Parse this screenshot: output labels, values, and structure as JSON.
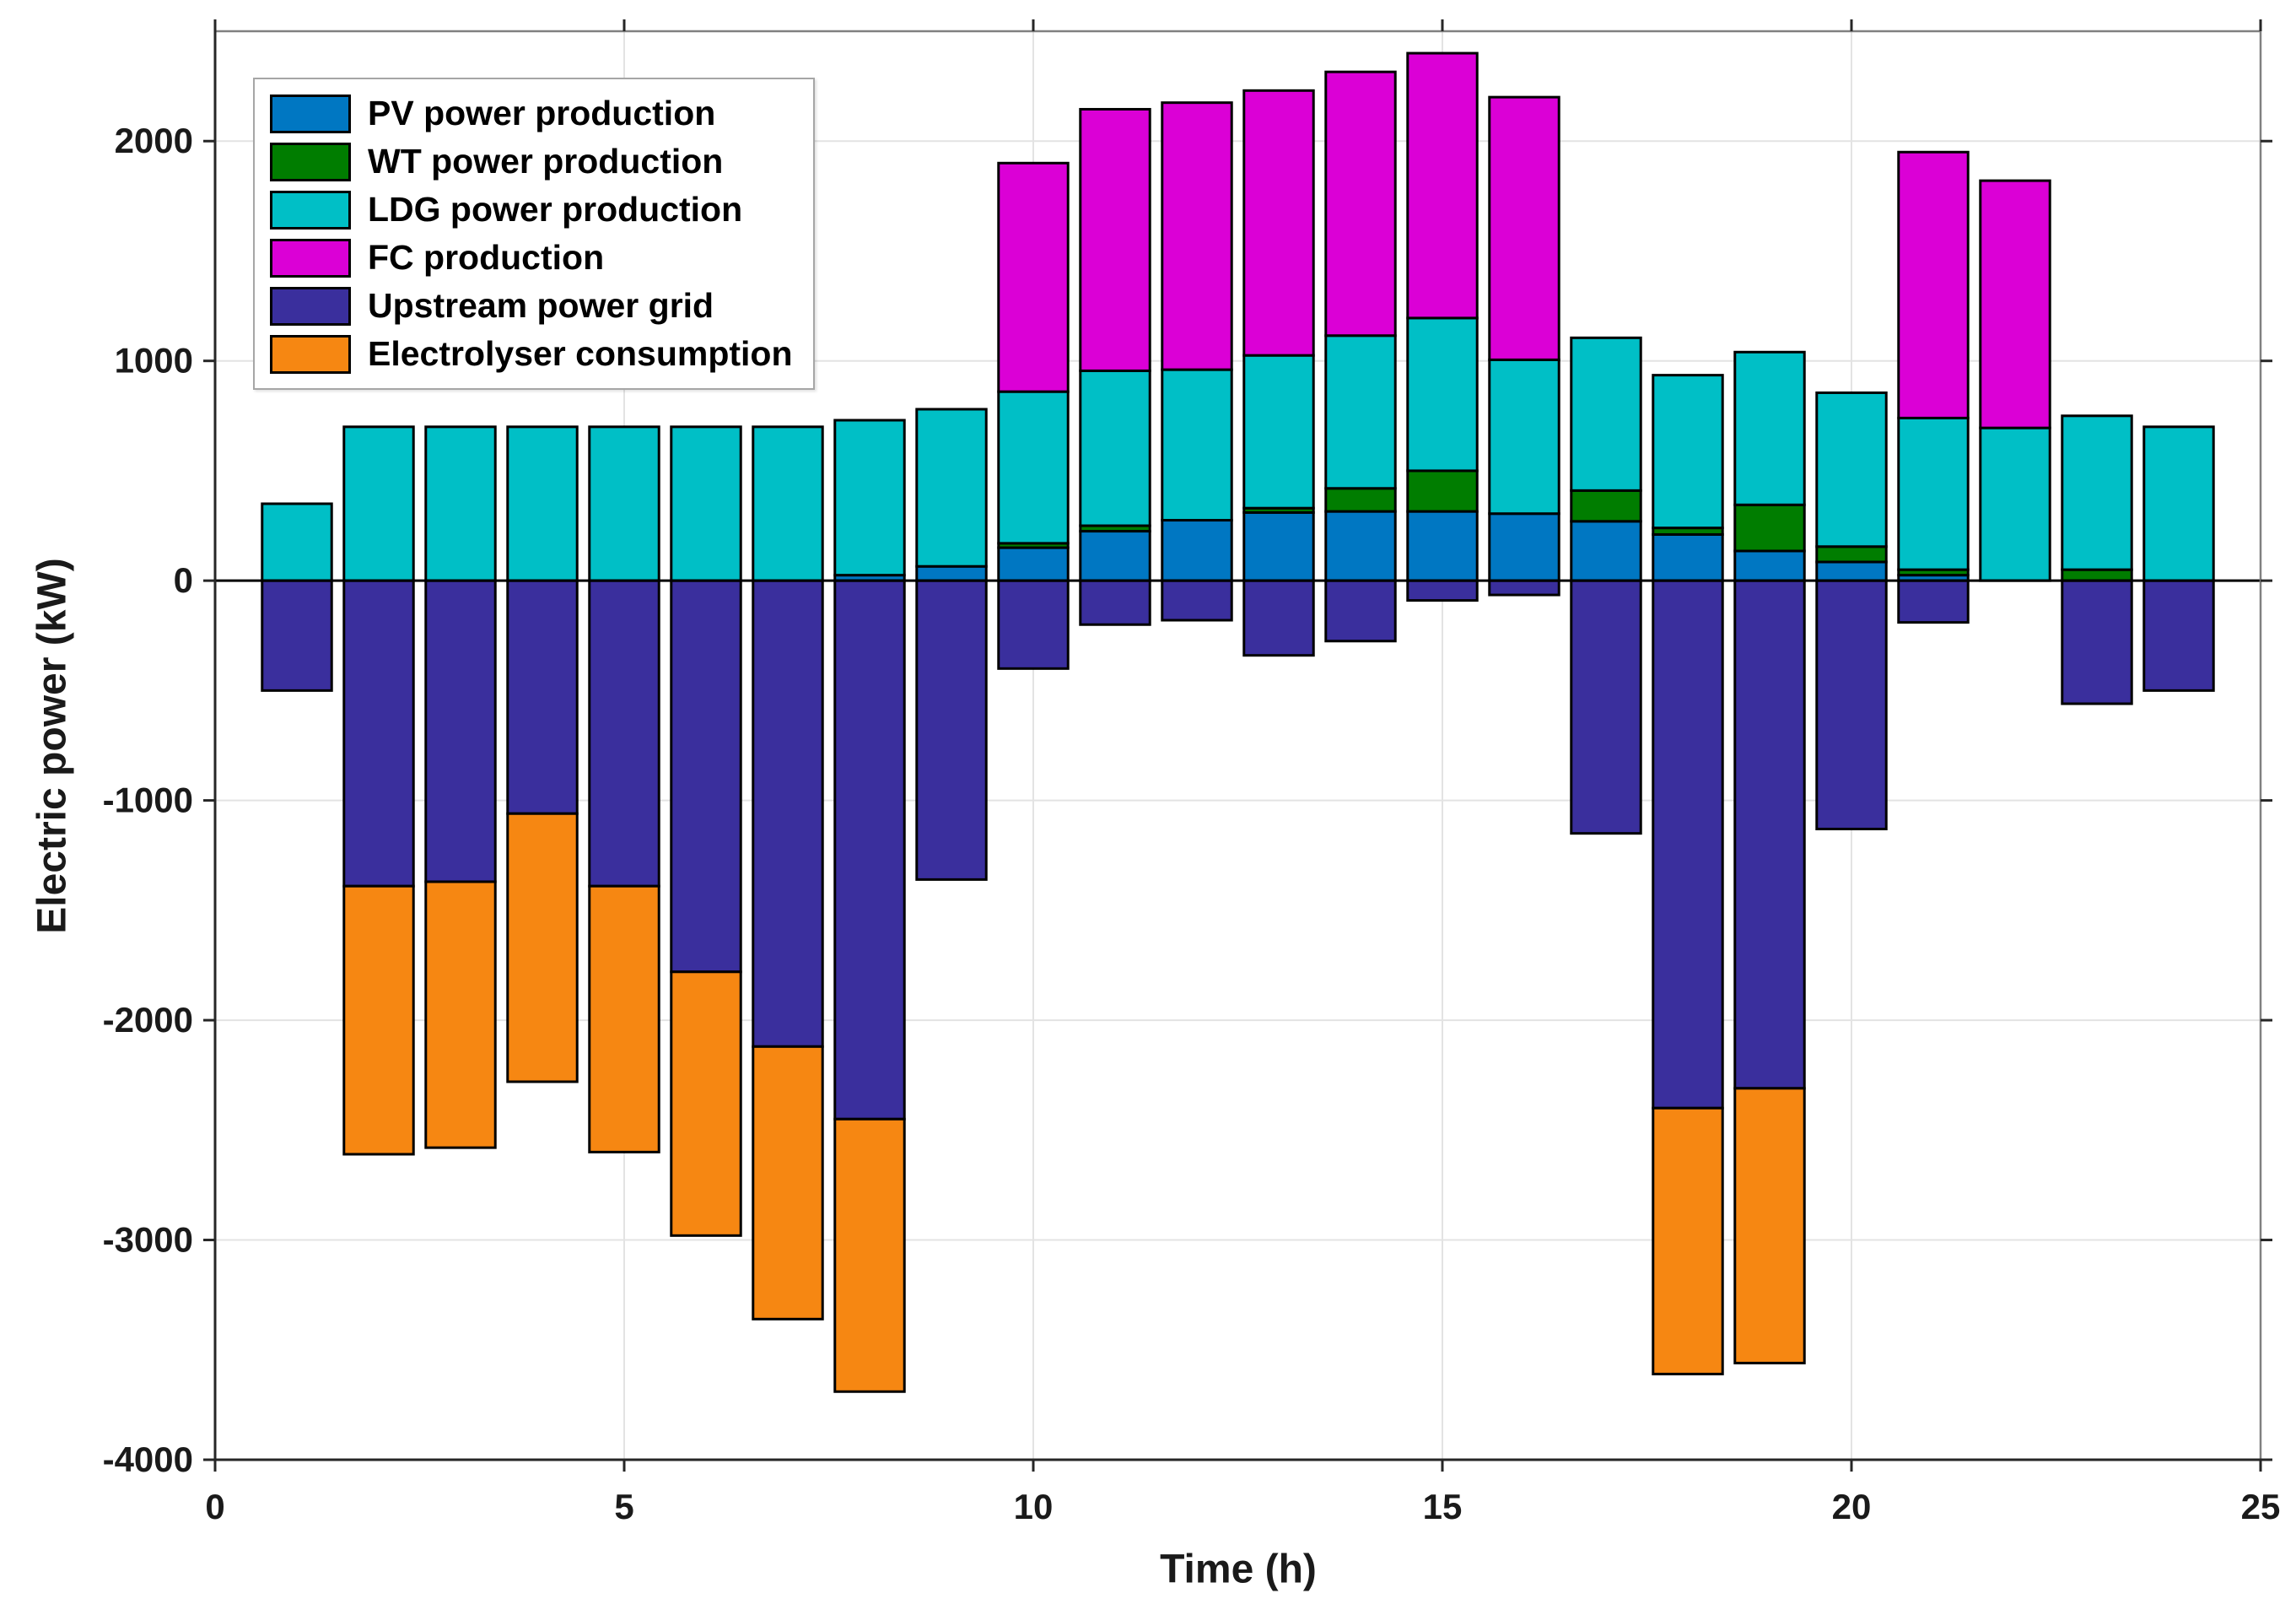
{
  "chart_data": {
    "type": "bar",
    "stacked": true,
    "title": "",
    "xlabel": "Time (h)",
    "ylabel": "Electric power (kW)",
    "xlim": [
      0,
      25
    ],
    "ylim": [
      -4000,
      2500
    ],
    "x_ticks": [
      0,
      5,
      10,
      15,
      20,
      25
    ],
    "y_ticks": [
      2000,
      1000,
      0,
      -1000,
      -2000,
      -3000,
      -4000
    ],
    "grid": true,
    "legend_position": "top-left",
    "bar_width_hours": 0.85,
    "hours": [
      1,
      2,
      3,
      4,
      5,
      6,
      7,
      8,
      9,
      10,
      11,
      12,
      13,
      14,
      15,
      16,
      17,
      18,
      19,
      20,
      21,
      22,
      23,
      24
    ],
    "series": [
      {
        "name": "PV power production",
        "color": "#0077C2",
        "stack": "positive",
        "values": [
          0,
          0,
          0,
          0,
          0,
          0,
          0,
          25,
          65,
          150,
          225,
          275,
          310,
          315,
          315,
          305,
          270,
          210,
          135,
          85,
          25,
          0,
          0,
          0
        ]
      },
      {
        "name": "WT power production",
        "color": "#007D00",
        "stack": "positive",
        "values": [
          0,
          0,
          0,
          0,
          0,
          0,
          0,
          0,
          0,
          20,
          25,
          0,
          20,
          105,
          185,
          0,
          140,
          30,
          210,
          70,
          25,
          0,
          50,
          0
        ]
      },
      {
        "name": "LDG power production",
        "color": "#00BFC6",
        "stack": "positive",
        "values": [
          350,
          700,
          700,
          700,
          700,
          700,
          700,
          705,
          715,
          690,
          705,
          685,
          695,
          695,
          695,
          700,
          695,
          695,
          695,
          700,
          690,
          695,
          700,
          700
        ]
      },
      {
        "name": "FC production",
        "color": "#DB00D6",
        "stack": "positive",
        "values": [
          0,
          0,
          0,
          0,
          0,
          0,
          0,
          0,
          0,
          1040,
          1190,
          1215,
          1205,
          1200,
          1205,
          1195,
          0,
          0,
          0,
          0,
          1210,
          1125,
          0,
          0
        ]
      },
      {
        "name": "Upstream power grid",
        "color": "#3A2F9D",
        "stack": "negative",
        "values": [
          -500,
          -1390,
          -1370,
          -1060,
          -1390,
          -1780,
          -2120,
          -2450,
          -1360,
          -400,
          -200,
          -180,
          -340,
          -275,
          -90,
          -65,
          -1150,
          -2400,
          -2310,
          -1130,
          -190,
          0,
          -560,
          -500
        ]
      },
      {
        "name": "Electrolyser consumption",
        "color": "#F68712",
        "stack": "negative",
        "values": [
          0,
          -1220,
          -1210,
          -1220,
          -1210,
          -1200,
          -1240,
          -1240,
          0,
          0,
          0,
          0,
          0,
          0,
          0,
          0,
          0,
          -1210,
          -1250,
          0,
          0,
          0,
          0,
          0
        ]
      }
    ],
    "colors": {
      "axis": "#262626",
      "box": "#808080",
      "gridline": "#e3e3e3",
      "zero_line": "#000000",
      "bar_border": "#000000"
    }
  }
}
